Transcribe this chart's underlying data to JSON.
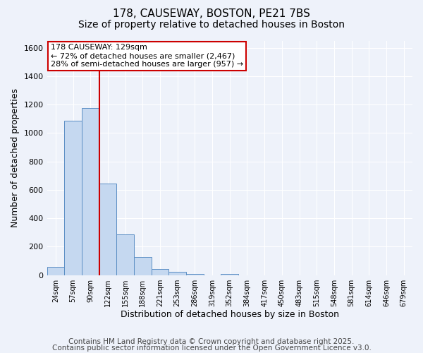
{
  "title1": "178, CAUSEWAY, BOSTON, PE21 7BS",
  "title2": "Size of property relative to detached houses in Boston",
  "xlabel": "Distribution of detached houses by size in Boston",
  "ylabel": "Number of detached properties",
  "categories": [
    "24sqm",
    "57sqm",
    "90sqm",
    "122sqm",
    "155sqm",
    "188sqm",
    "221sqm",
    "253sqm",
    "286sqm",
    "319sqm",
    "352sqm",
    "384sqm",
    "417sqm",
    "450sqm",
    "483sqm",
    "515sqm",
    "548sqm",
    "581sqm",
    "614sqm",
    "646sqm",
    "679sqm"
  ],
  "values": [
    60,
    1085,
    1175,
    645,
    285,
    130,
    42,
    22,
    10,
    0,
    10,
    0,
    0,
    0,
    0,
    0,
    0,
    0,
    0,
    0,
    0
  ],
  "bar_color": "#c5d8f0",
  "bar_edge_color": "#5b8ec4",
  "vline_color": "#cc0000",
  "vline_pos": 2.5,
  "annotation_title": "178 CAUSEWAY: 129sqm",
  "annotation_line1": "← 72% of detached houses are smaller (2,467)",
  "annotation_line2": "28% of semi-detached houses are larger (957) →",
  "annotation_box_color": "#cc0000",
  "ylim": [
    0,
    1650
  ],
  "yticks": [
    0,
    200,
    400,
    600,
    800,
    1000,
    1200,
    1400,
    1600
  ],
  "footer1": "Contains HM Land Registry data © Crown copyright and database right 2025.",
  "footer2": "Contains public sector information licensed under the Open Government Licence v3.0.",
  "bg_color": "#eef2fa",
  "plot_bg_color": "#eef2fa",
  "grid_color": "#ffffff",
  "title_fontsize": 11,
  "subtitle_fontsize": 10,
  "annotation_fontsize": 8,
  "footer_fontsize": 7.5,
  "tick_labelsize": 8,
  "xlabel_fontsize": 9,
  "ylabel_fontsize": 9
}
